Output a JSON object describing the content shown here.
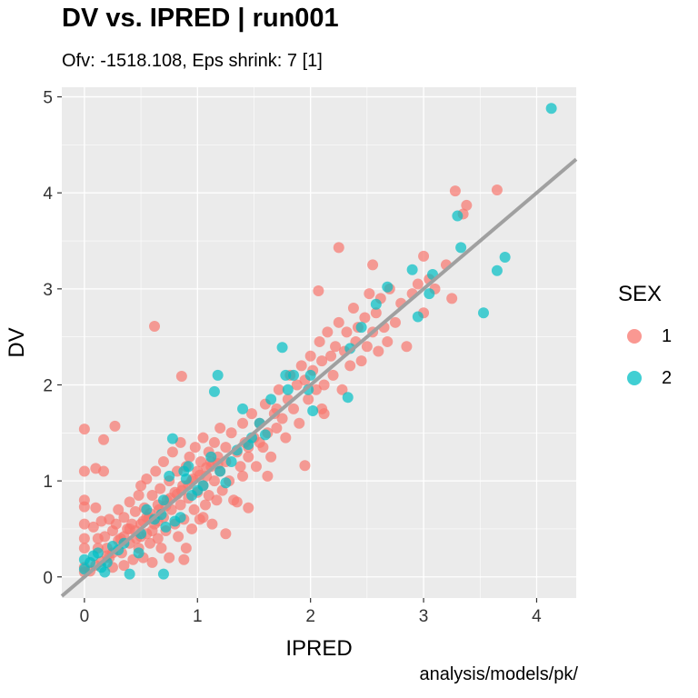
{
  "title": "DV vs. IPRED | run001",
  "subtitle": "Ofv: -1518.108, Eps shrink: 7 [1]",
  "caption": "analysis/models/pk/",
  "colors": {
    "panel": "#EBEBEB",
    "grid": "#FFFFFF",
    "sex1": "#F8766D",
    "sex2": "#00BFC4",
    "identity_line": "#A0A0A0"
  },
  "legend": {
    "title": "SEX",
    "items": [
      {
        "label": "1",
        "color": "#F8766D"
      },
      {
        "label": "2",
        "color": "#00BFC4"
      }
    ]
  },
  "chart_data": {
    "type": "scatter",
    "title": "DV vs. IPRED | run001",
    "subtitle": "Ofv: -1518.108, Eps shrink: 7 [1]",
    "xlabel": "IPRED",
    "ylabel": "DV",
    "xlim": [
      -0.2,
      4.35
    ],
    "ylim": [
      -0.22,
      5.1
    ],
    "x_ticks": [
      0,
      1,
      2,
      3,
      4
    ],
    "y_ticks": [
      0,
      1,
      2,
      3,
      4,
      5
    ],
    "grid": true,
    "legend_position": "right",
    "reference_line": {
      "type": "identity",
      "slope": 1,
      "intercept": 0
    },
    "series": [
      {
        "name": "1",
        "color": "#F8766D",
        "points": [
          [
            0.0,
            1.54
          ],
          [
            0.0,
            1.1
          ],
          [
            0.1,
            1.13
          ],
          [
            0.27,
            1.57
          ],
          [
            0.17,
            1.43
          ],
          [
            0.17,
            1.1
          ],
          [
            0.0,
            0.8
          ],
          [
            0.0,
            0.73
          ],
          [
            0.0,
            0.55
          ],
          [
            0.0,
            0.4
          ],
          [
            0.0,
            0.3
          ],
          [
            0.0,
            0.1
          ],
          [
            0.0,
            0.05
          ],
          [
            0.1,
            0.72
          ],
          [
            0.08,
            0.52
          ],
          [
            0.12,
            0.4
          ],
          [
            0.12,
            0.3
          ],
          [
            0.15,
            0.58
          ],
          [
            0.18,
            0.42
          ],
          [
            0.2,
            0.3
          ],
          [
            0.22,
            0.6
          ],
          [
            0.22,
            0.2
          ],
          [
            0.25,
            0.48
          ],
          [
            0.25,
            0.1
          ],
          [
            0.28,
            0.55
          ],
          [
            0.3,
            0.7
          ],
          [
            0.32,
            0.4
          ],
          [
            0.33,
            0.25
          ],
          [
            0.35,
            0.62
          ],
          [
            0.35,
            0.12
          ],
          [
            0.38,
            0.5
          ],
          [
            0.4,
            0.78
          ],
          [
            0.4,
            0.35
          ],
          [
            0.42,
            0.55
          ],
          [
            0.43,
            0.18
          ],
          [
            0.45,
            0.68
          ],
          [
            0.46,
            0.4
          ],
          [
            0.48,
            0.85
          ],
          [
            0.48,
            0.3
          ],
          [
            0.5,
            0.55
          ],
          [
            0.5,
            0.95
          ],
          [
            0.52,
            0.2
          ],
          [
            0.53,
            0.72
          ],
          [
            0.55,
            0.45
          ],
          [
            0.55,
            1.02
          ],
          [
            0.57,
            0.62
          ],
          [
            0.58,
            0.35
          ],
          [
            0.6,
            0.85
          ],
          [
            0.6,
            0.15
          ],
          [
            0.62,
            0.55
          ],
          [
            0.63,
            1.1
          ],
          [
            0.65,
            0.4
          ],
          [
            0.65,
            0.75
          ],
          [
            0.67,
            0.92
          ],
          [
            0.68,
            0.3
          ],
          [
            0.7,
            0.62
          ],
          [
            0.7,
            1.2
          ],
          [
            0.72,
            0.48
          ],
          [
            0.73,
            0.8
          ],
          [
            0.75,
            1.0
          ],
          [
            0.75,
            0.2
          ],
          [
            0.77,
            0.7
          ],
          [
            0.78,
            1.3
          ],
          [
            0.8,
            0.55
          ],
          [
            0.8,
            0.88
          ],
          [
            0.82,
            1.1
          ],
          [
            0.83,
            0.42
          ],
          [
            0.85,
            0.75
          ],
          [
            0.85,
            1.4
          ],
          [
            0.87,
            0.95
          ],
          [
            0.88,
            0.6
          ],
          [
            0.9,
            1.15
          ],
          [
            0.9,
            0.3
          ],
          [
            0.92,
            0.82
          ],
          [
            0.93,
            1.25
          ],
          [
            0.95,
            0.5
          ],
          [
            0.95,
            1.0
          ],
          [
            0.97,
            0.7
          ],
          [
            0.98,
            1.35
          ],
          [
            1.0,
            0.88
          ],
          [
            1.0,
            1.1
          ],
          [
            1.02,
            0.6
          ],
          [
            1.03,
            1.2
          ],
          [
            1.05,
            0.95
          ],
          [
            1.05,
            1.45
          ],
          [
            1.07,
            0.75
          ],
          [
            1.08,
            1.05
          ],
          [
            1.1,
            1.3
          ],
          [
            1.1,
            0.85
          ],
          [
            1.12,
            1.15
          ],
          [
            1.13,
            0.55
          ],
          [
            1.15,
            1.4
          ],
          [
            1.15,
            1.0
          ],
          [
            1.17,
            0.8
          ],
          [
            1.18,
            1.25
          ],
          [
            1.2,
            1.55
          ],
          [
            1.2,
            1.1
          ],
          [
            1.22,
            0.9
          ],
          [
            1.25,
            1.35
          ],
          [
            1.25,
            1.2
          ],
          [
            1.28,
            1.0
          ],
          [
            1.3,
            1.5
          ],
          [
            1.32,
            0.8
          ],
          [
            1.35,
            1.3
          ],
          [
            1.38,
            1.15
          ],
          [
            1.4,
            1.6
          ],
          [
            1.4,
            1.05
          ],
          [
            1.42,
            1.4
          ],
          [
            1.45,
            1.25
          ],
          [
            1.48,
            1.7
          ],
          [
            1.5,
            1.45
          ],
          [
            1.52,
            1.15
          ],
          [
            1.55,
            1.6
          ],
          [
            1.58,
            1.35
          ],
          [
            1.6,
            1.8
          ],
          [
            1.62,
            1.5
          ],
          [
            1.65,
            1.25
          ],
          [
            1.68,
            1.7
          ],
          [
            1.7,
            1.55
          ],
          [
            1.72,
            1.95
          ],
          [
            1.75,
            1.65
          ],
          [
            1.78,
            1.45
          ],
          [
            1.8,
            1.85
          ],
          [
            1.82,
            2.1
          ],
          [
            1.85,
            1.75
          ],
          [
            1.88,
            2.0
          ],
          [
            1.9,
            1.6
          ],
          [
            1.92,
            2.2
          ],
          [
            1.95,
            2.05
          ],
          [
            1.98,
            1.85
          ],
          [
            2.0,
            2.3
          ],
          [
            2.02,
            2.15
          ],
          [
            2.05,
            1.95
          ],
          [
            2.08,
            2.45
          ],
          [
            2.1,
            2.25
          ],
          [
            2.12,
            1.7
          ],
          [
            2.15,
            2.55
          ],
          [
            2.18,
            2.3
          ],
          [
            2.2,
            2.1
          ],
          [
            2.22,
            2.4
          ],
          [
            2.25,
            2.65
          ],
          [
            2.28,
            1.95
          ],
          [
            2.3,
            2.35
          ],
          [
            2.32,
            2.55
          ],
          [
            2.35,
            2.2
          ],
          [
            2.38,
            2.8
          ],
          [
            2.4,
            2.45
          ],
          [
            2.42,
            2.6
          ],
          [
            2.45,
            2.25
          ],
          [
            2.48,
            2.7
          ],
          [
            2.5,
            2.4
          ],
          [
            2.52,
            2.95
          ],
          [
            2.55,
            2.55
          ],
          [
            2.58,
            2.75
          ],
          [
            2.6,
            2.35
          ],
          [
            2.62,
            2.9
          ],
          [
            2.65,
            2.6
          ],
          [
            2.68,
            2.45
          ],
          [
            2.7,
            3.0
          ],
          [
            2.75,
            2.65
          ],
          [
            2.8,
            2.85
          ],
          [
            2.85,
            2.4
          ],
          [
            2.9,
            2.95
          ],
          [
            2.95,
            3.05
          ],
          [
            3.0,
            2.75
          ],
          [
            3.05,
            3.1
          ],
          [
            3.1,
            3.0
          ],
          [
            3.2,
            3.25
          ],
          [
            3.25,
            2.9
          ],
          [
            3.28,
            4.02
          ],
          [
            3.35,
            3.78
          ],
          [
            3.38,
            3.87
          ],
          [
            3.65,
            4.03
          ],
          [
            3.0,
            3.34
          ],
          [
            2.55,
            3.25
          ],
          [
            2.25,
            3.43
          ],
          [
            2.07,
            2.98
          ],
          [
            2.12,
            2.0
          ],
          [
            1.7,
            1.75
          ],
          [
            1.55,
            1.4
          ],
          [
            1.45,
            1.35
          ],
          [
            0.62,
            2.61
          ],
          [
            0.86,
            2.09
          ],
          [
            1.05,
            0.62
          ],
          [
            1.35,
            0.78
          ],
          [
            1.45,
            0.72
          ],
          [
            0.88,
            0.18
          ],
          [
            1.25,
            0.45
          ],
          [
            1.62,
            1.05
          ],
          [
            1.95,
            1.16
          ],
          [
            2.1,
            1.75
          ],
          [
            0.5,
            0.42
          ],
          [
            0.55,
            0.62
          ],
          [
            0.6,
            0.48
          ],
          [
            0.65,
            0.58
          ],
          [
            0.45,
            0.48
          ],
          [
            0.4,
            0.5
          ],
          [
            0.35,
            0.42
          ],
          [
            0.3,
            0.38
          ],
          [
            0.52,
            0.58
          ],
          [
            0.58,
            0.66
          ],
          [
            0.66,
            0.7
          ],
          [
            0.72,
            0.74
          ],
          [
            0.76,
            0.82
          ],
          [
            0.82,
            0.86
          ],
          [
            0.86,
            0.9
          ],
          [
            0.92,
            0.96
          ],
          [
            0.96,
            1.02
          ],
          [
            1.02,
            1.06
          ],
          [
            1.08,
            1.14
          ],
          [
            1.12,
            1.2
          ],
          [
            1.18,
            1.18
          ],
          [
            0.25,
            0.25
          ],
          [
            0.2,
            0.22
          ],
          [
            0.15,
            0.16
          ],
          [
            0.1,
            0.12
          ],
          [
            0.05,
            0.06
          ]
        ]
      },
      {
        "name": "2",
        "color": "#00BFC4",
        "points": [
          [
            4.13,
            4.88
          ],
          [
            3.3,
            3.76
          ],
          [
            3.33,
            3.43
          ],
          [
            3.72,
            3.33
          ],
          [
            3.65,
            3.19
          ],
          [
            3.53,
            2.75
          ],
          [
            3.08,
            3.15
          ],
          [
            3.05,
            2.95
          ],
          [
            2.9,
            3.2
          ],
          [
            2.95,
            2.71
          ],
          [
            2.68,
            3.02
          ],
          [
            2.58,
            2.84
          ],
          [
            2.45,
            2.6
          ],
          [
            2.35,
            2.38
          ],
          [
            2.33,
            1.87
          ],
          [
            1.75,
            2.39
          ],
          [
            1.78,
            2.1
          ],
          [
            1.85,
            2.1
          ],
          [
            2.0,
            2.1
          ],
          [
            2.02,
            1.73
          ],
          [
            1.98,
            1.95
          ],
          [
            1.8,
            1.95
          ],
          [
            1.65,
            1.85
          ],
          [
            1.55,
            1.6
          ],
          [
            1.4,
            1.75
          ],
          [
            1.48,
            1.45
          ],
          [
            1.35,
            1.32
          ],
          [
            1.3,
            1.2
          ],
          [
            1.18,
            2.1
          ],
          [
            1.15,
            1.93
          ],
          [
            1.12,
            1.25
          ],
          [
            1.05,
            0.95
          ],
          [
            0.95,
            0.85
          ],
          [
            0.92,
            1.15
          ],
          [
            0.88,
            1.1
          ],
          [
            0.78,
            1.44
          ],
          [
            0.75,
            1.05
          ],
          [
            0.7,
            0.8
          ],
          [
            0.72,
            0.52
          ],
          [
            0.68,
            0.65
          ],
          [
            0.62,
            0.6
          ],
          [
            0.55,
            0.7
          ],
          [
            0.5,
            0.45
          ],
          [
            0.48,
            0.25
          ],
          [
            0.4,
            0.03
          ],
          [
            0.7,
            0.03
          ],
          [
            0.35,
            0.35
          ],
          [
            0.3,
            0.28
          ],
          [
            0.25,
            0.32
          ],
          [
            0.2,
            0.15
          ],
          [
            0.15,
            0.1
          ],
          [
            0.12,
            0.25
          ],
          [
            0.08,
            0.22
          ],
          [
            0.05,
            0.15
          ],
          [
            0.0,
            0.18
          ],
          [
            0.0,
            0.08
          ],
          [
            0.18,
            0.05
          ],
          [
            0.8,
            0.58
          ],
          [
            0.85,
            0.62
          ],
          [
            0.9,
            1.02
          ],
          [
            1.0,
            0.9
          ],
          [
            1.2,
            1.1
          ],
          [
            1.25,
            0.98
          ],
          [
            1.45,
            1.38
          ],
          [
            1.6,
            1.48
          ]
        ]
      }
    ]
  }
}
